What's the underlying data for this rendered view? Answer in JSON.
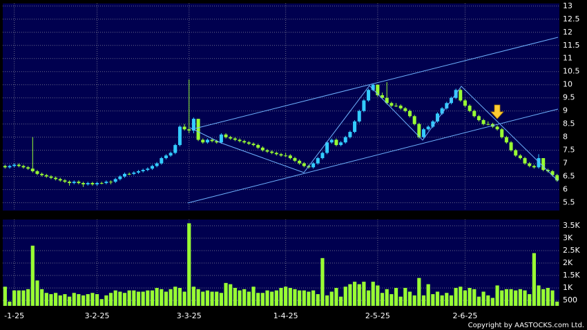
{
  "chart_data": {
    "type": "candlestick",
    "categories": [
      null,
      null,
      "-1-25",
      null,
      null,
      null,
      null,
      null,
      null,
      null,
      null,
      null,
      null,
      null,
      null,
      null,
      null,
      null,
      null,
      null,
      "3-2-25",
      null,
      null,
      null,
      null,
      null,
      null,
      null,
      null,
      null,
      null,
      null,
      null,
      null,
      null,
      null,
      null,
      null,
      null,
      null,
      "3-3-25",
      null,
      null,
      null,
      null,
      null,
      null,
      null,
      null,
      null,
      null,
      null,
      null,
      null,
      null,
      null,
      null,
      null,
      null,
      null,
      null,
      "1-4-25",
      null,
      null,
      null,
      null,
      null,
      null,
      null,
      null,
      null,
      null,
      null,
      null,
      null,
      null,
      null,
      null,
      null,
      null,
      null,
      "2-5-25",
      null,
      null,
      null,
      null,
      null,
      null,
      null,
      null,
      null,
      null,
      null,
      null,
      null,
      null,
      null,
      null,
      null,
      null,
      "2-6-25",
      null,
      null,
      null,
      null,
      null,
      null,
      null,
      null,
      null,
      null,
      null,
      null,
      null,
      null,
      null,
      null,
      null,
      null,
      null,
      null
    ],
    "candles": [
      [
        6.9,
        6.95,
        6.8,
        6.85
      ],
      [
        6.85,
        6.95,
        6.8,
        6.9
      ],
      [
        6.9,
        7.0,
        6.85,
        6.95
      ],
      [
        6.95,
        7.0,
        6.85,
        6.9
      ],
      [
        6.9,
        6.95,
        6.8,
        6.85
      ],
      [
        6.85,
        6.9,
        6.75,
        6.8
      ],
      [
        6.8,
        8.0,
        6.65,
        6.7
      ],
      [
        6.7,
        6.75,
        6.55,
        6.6
      ],
      [
        6.6,
        6.65,
        6.5,
        6.55
      ],
      [
        6.55,
        6.6,
        6.45,
        6.5
      ],
      [
        6.5,
        6.55,
        6.4,
        6.45
      ],
      [
        6.45,
        6.5,
        6.35,
        6.4
      ],
      [
        6.4,
        6.45,
        6.3,
        6.35
      ],
      [
        6.35,
        6.4,
        6.25,
        6.3
      ],
      [
        6.3,
        6.35,
        6.15,
        6.25
      ],
      [
        6.25,
        6.35,
        6.2,
        6.3
      ],
      [
        6.3,
        6.35,
        6.2,
        6.25
      ],
      [
        6.25,
        6.3,
        6.1,
        6.2
      ],
      [
        6.2,
        6.3,
        6.15,
        6.25
      ],
      [
        6.25,
        6.3,
        6.15,
        6.2
      ],
      [
        6.2,
        6.3,
        6.15,
        6.25
      ],
      [
        6.25,
        6.3,
        6.2,
        6.25
      ],
      [
        6.25,
        6.35,
        6.2,
        6.3
      ],
      [
        6.3,
        6.35,
        6.2,
        6.3
      ],
      [
        6.3,
        6.45,
        6.25,
        6.4
      ],
      [
        6.4,
        6.55,
        6.35,
        6.5
      ],
      [
        6.5,
        6.65,
        6.45,
        6.6
      ],
      [
        6.6,
        6.65,
        6.55,
        6.6
      ],
      [
        6.6,
        6.7,
        6.55,
        6.65
      ],
      [
        6.65,
        6.75,
        6.6,
        6.7
      ],
      [
        6.7,
        6.8,
        6.65,
        6.75
      ],
      [
        6.75,
        6.85,
        6.7,
        6.8
      ],
      [
        6.8,
        6.95,
        6.75,
        6.9
      ],
      [
        6.9,
        7.05,
        6.85,
        7.0
      ],
      [
        7.0,
        7.25,
        6.95,
        7.2
      ],
      [
        7.2,
        7.35,
        7.15,
        7.3
      ],
      [
        7.3,
        7.45,
        7.25,
        7.4
      ],
      [
        7.4,
        7.75,
        7.35,
        7.7
      ],
      [
        7.7,
        8.45,
        7.65,
        8.4
      ],
      [
        8.4,
        8.5,
        8.25,
        8.3
      ],
      [
        8.3,
        10.2,
        8.15,
        8.25
      ],
      [
        8.25,
        8.75,
        8.15,
        8.7
      ],
      [
        8.7,
        8.7,
        7.85,
        7.9
      ],
      [
        7.9,
        7.95,
        7.75,
        7.8
      ],
      [
        7.8,
        7.95,
        7.75,
        7.9
      ],
      [
        7.9,
        7.95,
        7.8,
        7.85
      ],
      [
        7.85,
        7.9,
        7.75,
        7.8
      ],
      [
        7.8,
        8.15,
        7.75,
        8.1
      ],
      [
        8.1,
        8.15,
        7.95,
        8.0
      ],
      [
        8.0,
        8.05,
        7.9,
        7.95
      ],
      [
        7.95,
        8.0,
        7.85,
        7.9
      ],
      [
        7.9,
        7.95,
        7.8,
        7.85
      ],
      [
        7.85,
        7.9,
        7.75,
        7.8
      ],
      [
        7.8,
        7.85,
        7.7,
        7.75
      ],
      [
        7.75,
        7.8,
        7.65,
        7.7
      ],
      [
        7.7,
        7.75,
        7.55,
        7.6
      ],
      [
        7.6,
        7.65,
        7.45,
        7.5
      ],
      [
        7.5,
        7.55,
        7.4,
        7.45
      ],
      [
        7.45,
        7.5,
        7.35,
        7.4
      ],
      [
        7.4,
        7.45,
        7.3,
        7.35
      ],
      [
        7.35,
        7.4,
        7.25,
        7.3
      ],
      [
        7.3,
        7.4,
        7.25,
        7.3
      ],
      [
        7.3,
        7.35,
        7.15,
        7.2
      ],
      [
        7.2,
        7.25,
        7.05,
        7.1
      ],
      [
        7.1,
        7.15,
        6.95,
        7.0
      ],
      [
        7.0,
        7.05,
        6.85,
        6.9
      ],
      [
        6.9,
        6.95,
        6.8,
        6.85
      ],
      [
        6.85,
        7.05,
        6.8,
        7.0
      ],
      [
        7.0,
        7.25,
        6.95,
        7.2
      ],
      [
        7.2,
        7.45,
        7.15,
        7.4
      ],
      [
        7.4,
        7.85,
        7.35,
        7.8
      ],
      [
        7.8,
        7.95,
        7.75,
        7.9
      ],
      [
        7.9,
        7.95,
        7.65,
        7.7
      ],
      [
        7.7,
        7.85,
        7.65,
        7.8
      ],
      [
        7.8,
        8.05,
        7.75,
        8.0
      ],
      [
        8.0,
        8.25,
        7.95,
        8.2
      ],
      [
        8.2,
        8.65,
        8.15,
        8.6
      ],
      [
        8.6,
        9.05,
        8.55,
        9.0
      ],
      [
        9.0,
        9.45,
        8.95,
        9.4
      ],
      [
        9.4,
        9.85,
        9.35,
        9.8
      ],
      [
        9.8,
        10.05,
        9.75,
        10.0
      ],
      [
        10.0,
        10.0,
        9.55,
        9.6
      ],
      [
        9.6,
        9.7,
        9.45,
        9.5
      ],
      [
        9.5,
        10.1,
        9.25,
        9.3
      ],
      [
        9.3,
        9.35,
        9.15,
        9.2
      ],
      [
        9.2,
        9.3,
        9.15,
        9.2
      ],
      [
        9.2,
        9.25,
        9.05,
        9.1
      ],
      [
        9.1,
        9.15,
        8.95,
        9.0
      ],
      [
        9.0,
        9.05,
        8.75,
        8.8
      ],
      [
        8.8,
        8.85,
        8.45,
        8.5
      ],
      [
        8.5,
        8.55,
        7.95,
        8.0
      ],
      [
        8.0,
        8.35,
        7.95,
        8.3
      ],
      [
        8.3,
        8.45,
        8.25,
        8.4
      ],
      [
        8.4,
        8.65,
        8.35,
        8.6
      ],
      [
        8.6,
        8.95,
        8.55,
        8.9
      ],
      [
        8.9,
        9.15,
        8.85,
        9.1
      ],
      [
        9.1,
        9.35,
        9.05,
        9.3
      ],
      [
        9.3,
        9.55,
        9.25,
        9.5
      ],
      [
        9.5,
        9.85,
        9.45,
        9.8
      ],
      [
        9.8,
        9.85,
        9.35,
        9.4
      ],
      [
        9.4,
        9.45,
        9.15,
        9.2
      ],
      [
        9.2,
        9.25,
        8.95,
        9.0
      ],
      [
        9.0,
        9.05,
        8.75,
        8.8
      ],
      [
        8.8,
        8.85,
        8.6,
        8.65
      ],
      [
        8.65,
        8.7,
        8.45,
        8.5
      ],
      [
        8.5,
        8.6,
        8.45,
        8.5
      ],
      [
        8.5,
        8.55,
        8.35,
        8.4
      ],
      [
        8.4,
        8.45,
        8.25,
        8.3
      ],
      [
        8.3,
        8.35,
        7.95,
        8.0
      ],
      [
        8.0,
        8.05,
        7.75,
        7.8
      ],
      [
        7.8,
        7.85,
        7.45,
        7.5
      ],
      [
        7.5,
        7.55,
        7.25,
        7.3
      ],
      [
        7.3,
        7.35,
        7.15,
        7.2
      ],
      [
        7.2,
        7.25,
        6.95,
        7.0
      ],
      [
        7.0,
        7.05,
        6.85,
        6.9
      ],
      [
        6.9,
        6.95,
        6.8,
        6.85
      ],
      [
        6.85,
        7.35,
        6.8,
        7.2
      ],
      [
        7.2,
        7.2,
        6.7,
        6.75
      ],
      [
        6.75,
        6.8,
        6.65,
        6.7
      ],
      [
        6.7,
        6.75,
        6.5,
        6.55
      ],
      [
        6.55,
        6.6,
        6.3,
        6.35
      ]
    ],
    "up_color": "#33ccff",
    "down_color": "#99ff33",
    "ylim": [
      5.2,
      13.1
    ],
    "yticks": [
      5.5,
      6,
      6.5,
      7,
      7.5,
      8,
      8.5,
      9,
      9.5,
      10,
      10.5,
      11,
      11.5,
      12,
      12.5,
      13
    ],
    "grid": true,
    "volume": {
      "type": "bar",
      "color": "#99ff33",
      "values": [
        1050,
        450,
        900,
        900,
        900,
        950,
        2700,
        1300,
        950,
        800,
        750,
        800,
        700,
        750,
        650,
        800,
        750,
        700,
        750,
        800,
        750,
        550,
        700,
        800,
        900,
        850,
        800,
        900,
        900,
        850,
        850,
        900,
        900,
        1000,
        950,
        850,
        950,
        1050,
        1000,
        850,
        3600,
        1050,
        950,
        850,
        900,
        850,
        850,
        800,
        1200,
        1150,
        1000,
        900,
        950,
        850,
        1050,
        800,
        800,
        900,
        850,
        900,
        1000,
        1050,
        1000,
        950,
        900,
        900,
        850,
        900,
        750,
        2200,
        700,
        850,
        1000,
        650,
        1050,
        1150,
        1250,
        1150,
        1250,
        900,
        1250,
        1100,
        800,
        950,
        750,
        1000,
        650,
        1000,
        850,
        700,
        1400,
        700,
        1150,
        750,
        850,
        700,
        800,
        700,
        1000,
        1050,
        900,
        1000,
        950,
        650,
        850,
        700,
        600,
        1100,
        900,
        950,
        950,
        900,
        950,
        900,
        750,
        2400,
        1100,
        950,
        1000,
        900,
        450
      ],
      "ylim": [
        280,
        3750
      ],
      "yticks": [
        500,
        {
          "value": 1000,
          "label": "1K"
        },
        {
          "value": 1500,
          "label": "1.5K"
        },
        {
          "value": 2000,
          "label": "2K"
        },
        {
          "value": 2500,
          "label": "2.5K"
        },
        {
          "value": 3000,
          "label": "3K"
        },
        {
          "value": 3500,
          "label": "3.5K"
        }
      ]
    }
  },
  "footer": "Copyright by AASTOCKS.com Ltd."
}
